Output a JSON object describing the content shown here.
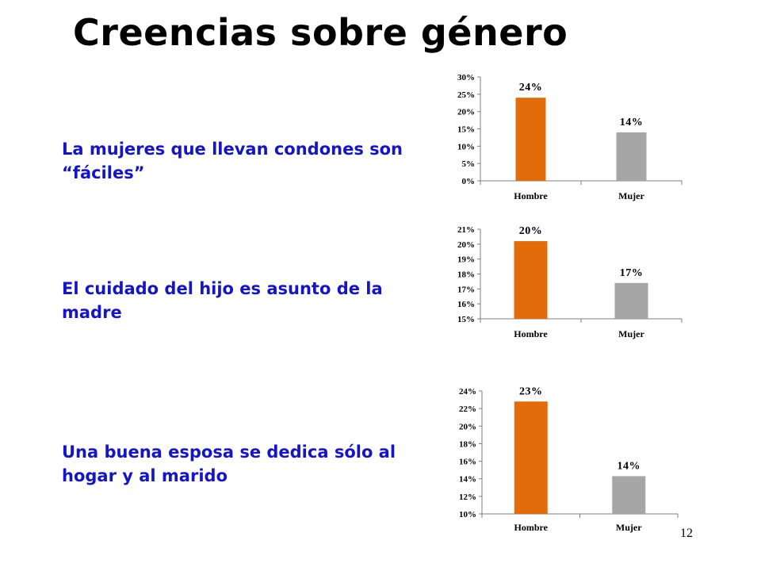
{
  "title": "Creencias sobre género",
  "page_number": "12",
  "statements": [
    "La mujeres que llevan condones son “fáciles”",
    "El cuidado del hijo es asunto de la madre",
    "Una buena esposa se dedica sólo al hogar y al marido"
  ],
  "colors": {
    "hombre": "#e36c0a",
    "mujer": "#a6a6a6",
    "statement_text": "#1414c8"
  },
  "chart_data": [
    {
      "type": "bar",
      "categories": [
        "Hombre",
        "Mujer"
      ],
      "values": [
        24,
        14
      ],
      "data_labels": [
        "24%",
        "14%"
      ],
      "yticks": [
        "0%",
        "5%",
        "10%",
        "15%",
        "20%",
        "25%",
        "30%"
      ],
      "ylim": [
        0,
        30
      ],
      "ystep": 5,
      "grid": false,
      "title": "",
      "xlabel": "",
      "ylabel": ""
    },
    {
      "type": "bar",
      "categories": [
        "Hombre",
        "Mujer"
      ],
      "values": [
        20.2,
        17.4
      ],
      "data_labels": [
        "20%",
        "17%"
      ],
      "yticks": [
        "15%",
        "16%",
        "17%",
        "18%",
        "19%",
        "20%",
        "21%"
      ],
      "ylim": [
        15,
        21
      ],
      "ystep": 1,
      "grid": false,
      "title": "",
      "xlabel": "",
      "ylabel": ""
    },
    {
      "type": "bar",
      "categories": [
        "Hombre",
        "Mujer"
      ],
      "values": [
        22.8,
        14.3
      ],
      "data_labels": [
        "23%",
        "14%"
      ],
      "yticks": [
        "10%",
        "12%",
        "14%",
        "16%",
        "18%",
        "20%",
        "22%",
        "24%"
      ],
      "ylim": [
        10,
        24
      ],
      "ystep": 2,
      "grid": false,
      "title": "",
      "xlabel": "",
      "ylabel": ""
    }
  ]
}
